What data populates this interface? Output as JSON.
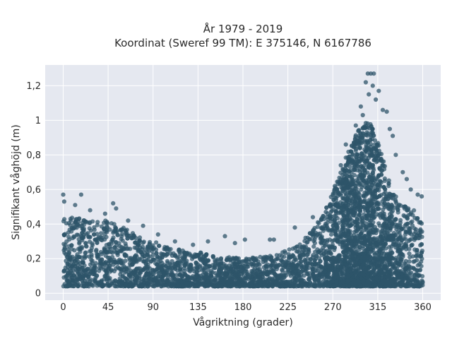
{
  "chart_data": {
    "type": "scatter",
    "title": [
      "År 1979 - 2019",
      "Koordinat (Sweref 99 TM): E 375146, N 6167786"
    ],
    "xlabel": "Vågriktning (grader)",
    "ylabel": "Signifikant våghöjd (m)",
    "xlim": [
      -18,
      378
    ],
    "ylim": [
      -0.04,
      1.32
    ],
    "xticks": [
      0,
      45,
      90,
      135,
      180,
      225,
      270,
      315,
      360
    ],
    "xtick_labels": [
      "0",
      "45",
      "90",
      "135",
      "180",
      "225",
      "270",
      "315",
      "360"
    ],
    "yticks": [
      0,
      0.2,
      0.4,
      0.6,
      0.8,
      1,
      1.2
    ],
    "ytick_labels": [
      "0",
      "0,2",
      "0,4",
      "0,6",
      "0,8",
      "1",
      "1,2"
    ],
    "grid": true,
    "marker_color": "#2e5469",
    "background_color": "#e5e8f0",
    "envelope": {
      "direction": [
        0,
        5,
        10,
        20,
        30,
        45,
        60,
        75,
        90,
        105,
        120,
        135,
        150,
        165,
        180,
        195,
        210,
        225,
        240,
        255,
        265,
        275,
        285,
        295,
        300,
        305,
        310,
        315,
        320,
        325,
        330,
        340,
        350,
        360
      ],
      "typical_max_height": [
        0.45,
        0.43,
        0.44,
        0.43,
        0.42,
        0.42,
        0.38,
        0.33,
        0.3,
        0.27,
        0.25,
        0.24,
        0.22,
        0.21,
        0.2,
        0.21,
        0.23,
        0.26,
        0.31,
        0.4,
        0.52,
        0.66,
        0.82,
        0.94,
        0.98,
        1.0,
        0.96,
        0.88,
        0.78,
        0.68,
        0.58,
        0.52,
        0.48,
        0.48
      ]
    },
    "outliers": [
      {
        "x": 305,
        "y": 1.27
      },
      {
        "x": 308,
        "y": 1.27
      },
      {
        "x": 311,
        "y": 1.27
      },
      {
        "x": 303,
        "y": 1.22
      },
      {
        "x": 310,
        "y": 1.2
      },
      {
        "x": 316,
        "y": 1.17
      },
      {
        "x": 306,
        "y": 1.15
      },
      {
        "x": 313,
        "y": 1.12
      },
      {
        "x": 298,
        "y": 1.08
      },
      {
        "x": 320,
        "y": 1.06
      },
      {
        "x": 324,
        "y": 1.05
      },
      {
        "x": 300,
        "y": 1.03
      },
      {
        "x": 293,
        "y": 0.97
      },
      {
        "x": 327,
        "y": 0.95
      },
      {
        "x": 330,
        "y": 0.91
      },
      {
        "x": 283,
        "y": 0.86
      },
      {
        "x": 333,
        "y": 0.8
      },
      {
        "x": 278,
        "y": 0.74
      },
      {
        "x": 340,
        "y": 0.7
      },
      {
        "x": 344,
        "y": 0.66
      },
      {
        "x": 348,
        "y": 0.6
      },
      {
        "x": 272,
        "y": 0.62
      },
      {
        "x": 355,
        "y": 0.57
      },
      {
        "x": 359,
        "y": 0.56
      },
      {
        "x": 0,
        "y": 0.57
      },
      {
        "x": 1,
        "y": 0.53
      },
      {
        "x": 18,
        "y": 0.57
      },
      {
        "x": 12,
        "y": 0.51
      },
      {
        "x": 27,
        "y": 0.48
      },
      {
        "x": 50,
        "y": 0.52
      },
      {
        "x": 53,
        "y": 0.49
      },
      {
        "x": 42,
        "y": 0.46
      },
      {
        "x": 65,
        "y": 0.42
      },
      {
        "x": 80,
        "y": 0.39
      },
      {
        "x": 95,
        "y": 0.34
      },
      {
        "x": 112,
        "y": 0.3
      },
      {
        "x": 130,
        "y": 0.28
      },
      {
        "x": 145,
        "y": 0.3
      },
      {
        "x": 162,
        "y": 0.33
      },
      {
        "x": 172,
        "y": 0.29
      },
      {
        "x": 182,
        "y": 0.31
      },
      {
        "x": 207,
        "y": 0.31
      },
      {
        "x": 211,
        "y": 0.31
      },
      {
        "x": 232,
        "y": 0.38
      },
      {
        "x": 250,
        "y": 0.44
      },
      {
        "x": 255,
        "y": 0.41
      },
      {
        "x": 263,
        "y": 0.47
      },
      {
        "x": 268,
        "y": 0.5
      }
    ]
  }
}
